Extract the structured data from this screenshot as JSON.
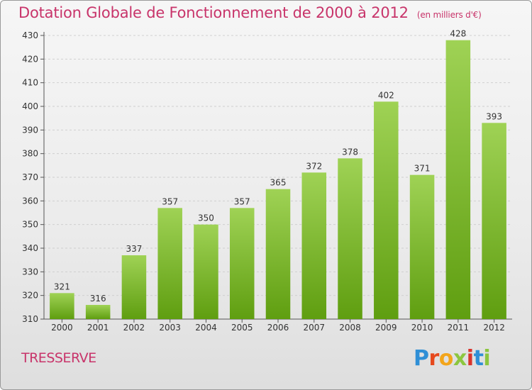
{
  "header": {
    "title": "Dotation Globale de Fonctionnement de 2000 à 2012",
    "unit": "(en milliers d'€)"
  },
  "commune": "TRESSERVE",
  "logo": {
    "text": "Proxiti",
    "letters": [
      "P",
      "r",
      "o",
      "x",
      "i",
      "t",
      "i"
    ],
    "colors": [
      "#2f8fd6",
      "#e6491d",
      "#f3a51b",
      "#8cc63f",
      "#d9342c",
      "#2f8fd6",
      "#8cc63f"
    ]
  },
  "colors": {
    "bar_top": "#9fd255",
    "bar_bottom": "#5f9e10",
    "grid": "#cfcfcf",
    "title": "#c8346a"
  },
  "chart_data": {
    "type": "bar",
    "title": "Dotation Globale de Fonctionnement de 2000 à 2012",
    "subtitle": "(en milliers d'€)",
    "categories": [
      "2000",
      "2001",
      "2002",
      "2003",
      "2004",
      "2005",
      "2006",
      "2007",
      "2008",
      "2009",
      "2010",
      "2011",
      "2012"
    ],
    "values": [
      321,
      316,
      337,
      357,
      350,
      357,
      365,
      372,
      378,
      402,
      371,
      428,
      393
    ],
    "ylim": [
      310,
      430
    ],
    "yticks": [
      310,
      320,
      330,
      340,
      350,
      360,
      370,
      380,
      390,
      400,
      410,
      420,
      430
    ],
    "grid": "horizontal dashed",
    "data_labels": true
  }
}
